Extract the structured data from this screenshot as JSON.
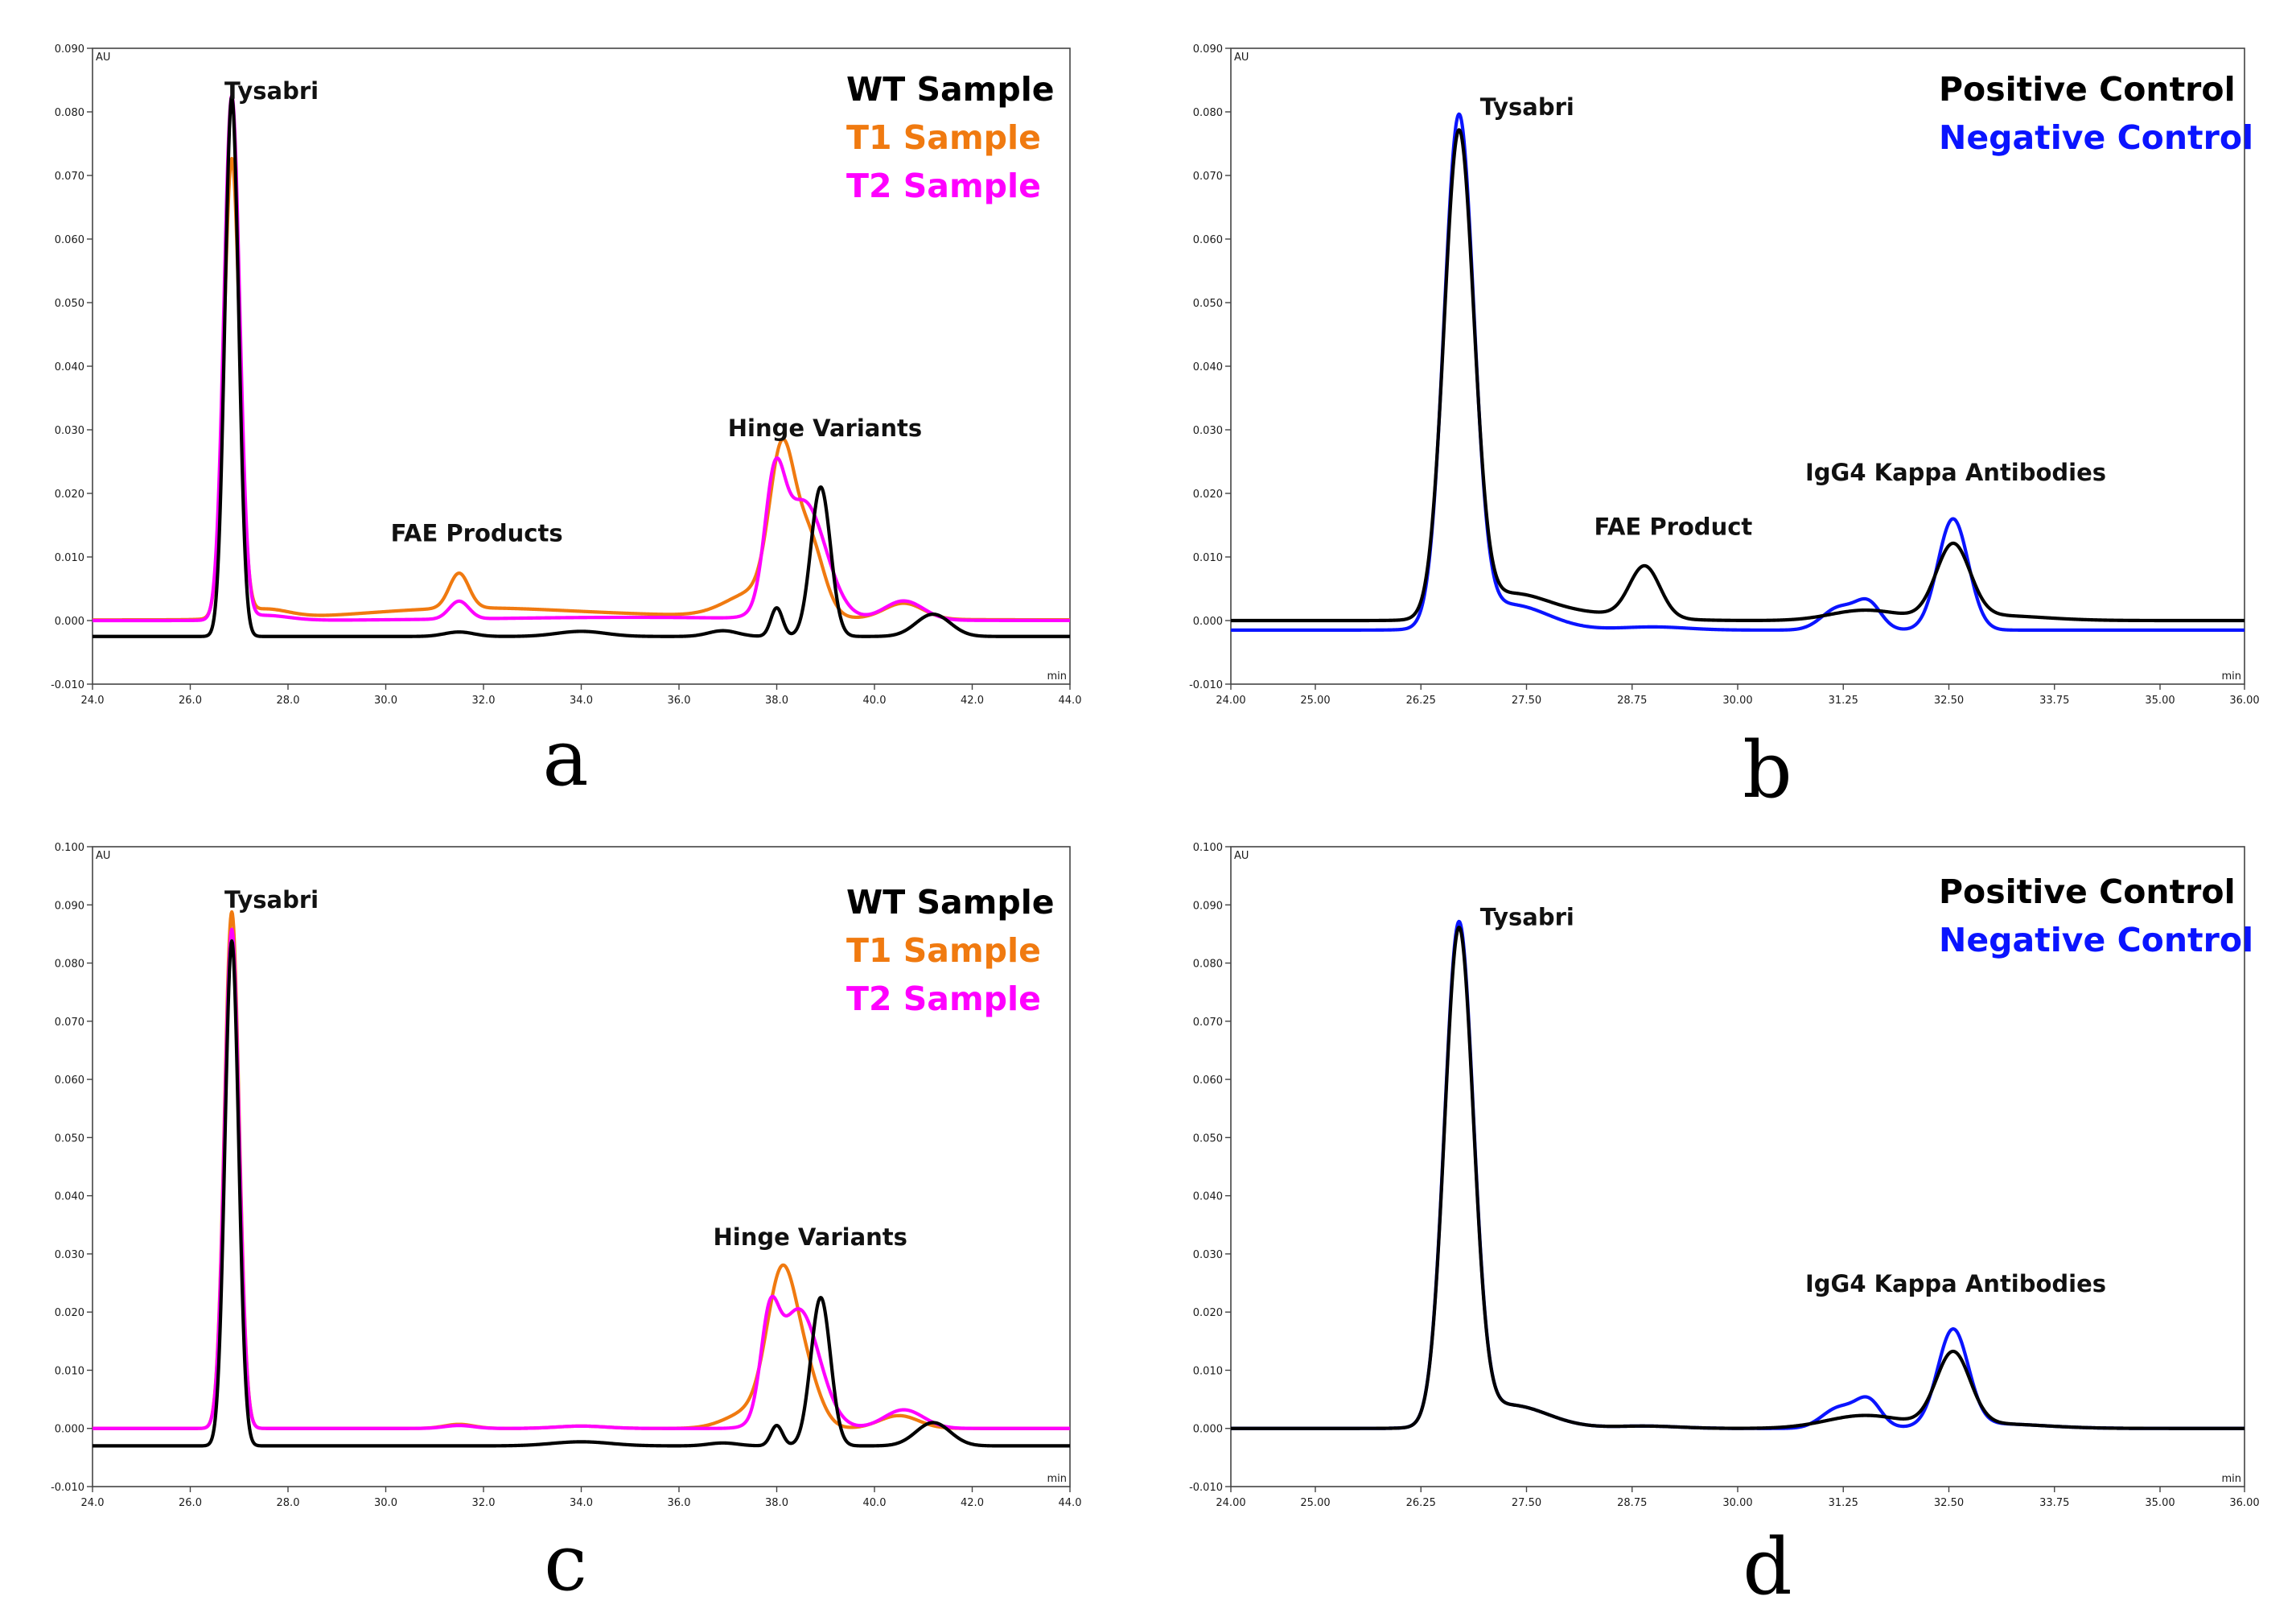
{
  "figure": {
    "panel_labels": [
      "a",
      "b",
      "c",
      "d"
    ],
    "colors": {
      "wt": "#000000",
      "t1": "#f07a10",
      "t2": "#ff00ff",
      "positive": "#000000",
      "negative": "#0a14ff"
    }
  },
  "chart_data": [
    {
      "type": "line",
      "id": "a",
      "ylabel": "AU",
      "xlabel": "min",
      "xlim": [
        24.0,
        44.0
      ],
      "ylim": [
        -0.01,
        0.09
      ],
      "xticks": [
        24.0,
        26.0,
        28.0,
        30.0,
        32.0,
        34.0,
        36.0,
        38.0,
        40.0,
        42.0,
        44.0
      ],
      "xtick_labels": [
        "24.0",
        "26.0",
        "28.0",
        "30.0",
        "32.0",
        "34.0",
        "36.0",
        "38.0",
        "40.0",
        "42.0",
        "44.0"
      ],
      "yticks": [
        -0.01,
        0.0,
        0.01,
        0.02,
        0.03,
        0.04,
        0.05,
        0.06,
        0.07,
        0.08,
        0.09
      ],
      "ytick_labels": [
        "-0.010",
        "0.000",
        "0.010",
        "0.020",
        "0.030",
        "0.040",
        "0.050",
        "0.060",
        "0.070",
        "0.080",
        "0.090"
      ],
      "annotations": [
        {
          "text": "Tysabri",
          "x": 26.7,
          "y": 0.082
        },
        {
          "text": "FAE Products",
          "x": 30.1,
          "y": 0.0125
        },
        {
          "text": "Hinge Variants",
          "x": 37.0,
          "y": 0.029
        }
      ],
      "legend": [
        {
          "label": "WT Sample",
          "color": "#000000"
        },
        {
          "label": "T1 Sample",
          "color": "#f07a10"
        },
        {
          "label": "T2 Sample",
          "color": "#ff00ff"
        }
      ],
      "series": [
        {
          "name": "T1 Sample",
          "color": "#f07a10",
          "baseline": 0.0001,
          "peaks": [
            [
              26.85,
              0.0718,
              0.16
            ],
            [
              27.5,
              0.0015,
              0.5
            ],
            [
              31.5,
              0.0055,
              0.2
            ],
            [
              31.5,
              0.0015,
              2.0
            ],
            [
              38.1,
              0.0228,
              0.25
            ],
            [
              38.65,
              0.012,
              0.3
            ],
            [
              37.6,
              0.004,
              0.6
            ],
            [
              40.6,
              0.0025,
              0.4
            ],
            [
              35.0,
              0.0007,
              3.0
            ]
          ]
        },
        {
          "name": "T2 Sample",
          "color": "#ff00ff",
          "baseline": 0.0,
          "peaks": [
            [
              26.85,
              0.0822,
              0.16
            ],
            [
              27.5,
              0.0008,
              0.5
            ],
            [
              31.5,
              0.0028,
              0.2
            ],
            [
              37.95,
              0.017,
              0.2
            ],
            [
              38.55,
              0.0185,
              0.45
            ],
            [
              40.6,
              0.003,
              0.4
            ],
            [
              35.0,
              0.0005,
              3.0
            ]
          ]
        },
        {
          "name": "WT Sample",
          "color": "#000000",
          "baseline": -0.0025,
          "peaks": [
            [
              26.85,
              0.0849,
              0.14
            ],
            [
              31.5,
              0.0007,
              0.3
            ],
            [
              34.0,
              0.0008,
              0.5
            ],
            [
              36.9,
              0.0009,
              0.3
            ],
            [
              38.0,
              0.0045,
              0.12
            ],
            [
              38.9,
              0.0235,
              0.2
            ],
            [
              41.2,
              0.0035,
              0.35
            ]
          ]
        }
      ]
    },
    {
      "type": "line",
      "id": "b",
      "ylabel": "AU",
      "xlabel": "min",
      "xlim": [
        24.0,
        36.0
      ],
      "ylim": [
        -0.01,
        0.09
      ],
      "xticks": [
        24.0,
        25.0,
        26.25,
        27.5,
        28.75,
        30.0,
        31.25,
        32.5,
        33.75,
        35.0,
        36.0
      ],
      "xtick_labels": [
        "24.00",
        "25.00",
        "26.25",
        "27.50",
        "28.75",
        "30.00",
        "31.25",
        "32.50",
        "33.75",
        "35.00",
        "36.00"
      ],
      "yticks": [
        -0.01,
        0.0,
        0.01,
        0.02,
        0.03,
        0.04,
        0.05,
        0.06,
        0.07,
        0.08,
        0.09
      ],
      "ytick_labels": [
        "-0.010",
        "0.000",
        "0.010",
        "0.020",
        "0.030",
        "0.040",
        "0.050",
        "0.060",
        "0.070",
        "0.080",
        "0.090"
      ],
      "annotations": [
        {
          "text": "Tysabri",
          "x": 26.95,
          "y": 0.0795
        },
        {
          "text": "FAE Product",
          "x": 28.3,
          "y": 0.0135
        },
        {
          "text": "IgG4 Kappa  Antibodies",
          "x": 30.8,
          "y": 0.022
        }
      ],
      "legend": [
        {
          "label": "Positive Control",
          "color": "#000000"
        },
        {
          "label": "Negative Control",
          "color": "#0a14ff"
        }
      ],
      "series": [
        {
          "name": "Negative Control",
          "color": "#0a14ff",
          "baseline": -0.0015,
          "peaks": [
            [
              26.7,
              0.0795,
              0.175
            ],
            [
              27.3,
              0.004,
              0.45
            ],
            [
              29.0,
              0.0005,
              0.4
            ],
            [
              31.2,
              0.0035,
              0.2
            ],
            [
              31.55,
              0.004,
              0.15
            ],
            [
              32.55,
              0.0175,
              0.18
            ]
          ]
        },
        {
          "name": "Positive Control",
          "color": "#000000",
          "baseline": 0.0,
          "peaks": [
            [
              26.7,
              0.0755,
              0.175
            ],
            [
              27.3,
              0.004,
              0.45
            ],
            [
              28.9,
              0.008,
              0.18
            ],
            [
              28.3,
              0.001,
              0.6
            ],
            [
              31.5,
              0.0016,
              0.4
            ],
            [
              32.55,
              0.0115,
              0.2
            ],
            [
              33.0,
              0.0008,
              0.6
            ]
          ]
        }
      ]
    },
    {
      "type": "line",
      "id": "c",
      "ylabel": "AU",
      "xlabel": "min",
      "xlim": [
        24.0,
        44.0
      ],
      "ylim": [
        -0.01,
        0.1
      ],
      "xticks": [
        24.0,
        26.0,
        28.0,
        30.0,
        32.0,
        34.0,
        36.0,
        38.0,
        40.0,
        42.0,
        44.0
      ],
      "xtick_labels": [
        "24.0",
        "26.0",
        "28.0",
        "30.0",
        "32.0",
        "34.0",
        "36.0",
        "38.0",
        "40.0",
        "42.0",
        "44.0"
      ],
      "yticks": [
        -0.01,
        0.0,
        0.01,
        0.02,
        0.03,
        0.04,
        0.05,
        0.06,
        0.07,
        0.08,
        0.09,
        0.1
      ],
      "ytick_labels": [
        "-0.010",
        "0.000",
        "0.010",
        "0.020",
        "0.030",
        "0.040",
        "0.050",
        "0.060",
        "0.070",
        "0.080",
        "0.090",
        "0.100"
      ],
      "annotations": [
        {
          "text": "Tysabri",
          "x": 26.7,
          "y": 0.0895
        },
        {
          "text": "Hinge Variants",
          "x": 36.7,
          "y": 0.0315
        }
      ],
      "legend": [
        {
          "label": "WT Sample",
          "color": "#000000"
        },
        {
          "label": "T1 Sample",
          "color": "#f07a10"
        },
        {
          "label": "T2 Sample",
          "color": "#ff00ff"
        }
      ],
      "series": [
        {
          "name": "T1 Sample",
          "color": "#f07a10",
          "baseline": 0.0,
          "peaks": [
            [
              26.85,
              0.0888,
              0.15
            ],
            [
              31.5,
              0.0007,
              0.3
            ],
            [
              34.0,
              0.0004,
              0.5
            ],
            [
              38.1,
              0.0245,
              0.3
            ],
            [
              38.6,
              0.008,
              0.3
            ],
            [
              37.5,
              0.003,
              0.5
            ],
            [
              40.5,
              0.0022,
              0.4
            ]
          ]
        },
        {
          "name": "T2 Sample",
          "color": "#ff00ff",
          "baseline": 0.0,
          "peaks": [
            [
              26.85,
              0.0858,
              0.15
            ],
            [
              31.5,
              0.0005,
              0.3
            ],
            [
              34.0,
              0.0004,
              0.5
            ],
            [
              37.85,
              0.0145,
              0.18
            ],
            [
              38.45,
              0.0205,
              0.42
            ],
            [
              40.6,
              0.0032,
              0.4
            ]
          ]
        },
        {
          "name": "WT Sample",
          "color": "#000000",
          "baseline": -0.003,
          "peaks": [
            [
              26.85,
              0.0868,
              0.14
            ],
            [
              34.0,
              0.0007,
              0.6
            ],
            [
              36.9,
              0.0005,
              0.3
            ],
            [
              38.0,
              0.0035,
              0.12
            ],
            [
              38.9,
              0.0255,
              0.2
            ],
            [
              41.2,
              0.004,
              0.35
            ]
          ]
        }
      ]
    },
    {
      "type": "line",
      "id": "d",
      "ylabel": "AU",
      "xlabel": "min",
      "xlim": [
        24.0,
        36.0
      ],
      "ylim": [
        -0.01,
        0.1
      ],
      "xticks": [
        24.0,
        25.0,
        26.25,
        27.5,
        28.75,
        30.0,
        31.25,
        32.5,
        33.75,
        35.0,
        36.0
      ],
      "xtick_labels": [
        "24.00",
        "25.00",
        "26.25",
        "27.50",
        "28.75",
        "30.00",
        "31.25",
        "32.50",
        "33.75",
        "35.00",
        "36.00"
      ],
      "yticks": [
        -0.01,
        0.0,
        0.01,
        0.02,
        0.03,
        0.04,
        0.05,
        0.06,
        0.07,
        0.08,
        0.09,
        0.1
      ],
      "ytick_labels": [
        "-0.010",
        "0.000",
        "0.010",
        "0.020",
        "0.030",
        "0.040",
        "0.050",
        "0.060",
        "0.070",
        "0.080",
        "0.090",
        "0.100"
      ],
      "annotations": [
        {
          "text": "Tysabri",
          "x": 26.95,
          "y": 0.0865
        },
        {
          "text": "IgG4 Kappa  Antibodies",
          "x": 30.8,
          "y": 0.0235
        }
      ],
      "legend": [
        {
          "label": "Positive Control",
          "color": "#000000"
        },
        {
          "label": "Negative Control",
          "color": "#0a14ff"
        }
      ],
      "series": [
        {
          "name": "Negative Control",
          "color": "#0a14ff",
          "baseline": 0.0,
          "peaks": [
            [
              26.7,
              0.0855,
              0.17
            ],
            [
              27.3,
              0.004,
              0.45
            ],
            [
              28.9,
              0.0004,
              0.4
            ],
            [
              31.2,
              0.0035,
              0.2
            ],
            [
              31.55,
              0.0045,
              0.15
            ],
            [
              32.55,
              0.0165,
              0.18
            ],
            [
              33.0,
              0.0008,
              0.6
            ]
          ]
        },
        {
          "name": "Positive Control",
          "color": "#000000",
          "baseline": 0.0,
          "peaks": [
            [
              26.7,
              0.0845,
              0.17
            ],
            [
              27.3,
              0.004,
              0.45
            ],
            [
              28.9,
              0.0004,
              0.4
            ],
            [
              31.5,
              0.0022,
              0.45
            ],
            [
              32.55,
              0.0125,
              0.2
            ],
            [
              33.0,
              0.0008,
              0.6
            ]
          ]
        }
      ]
    }
  ]
}
